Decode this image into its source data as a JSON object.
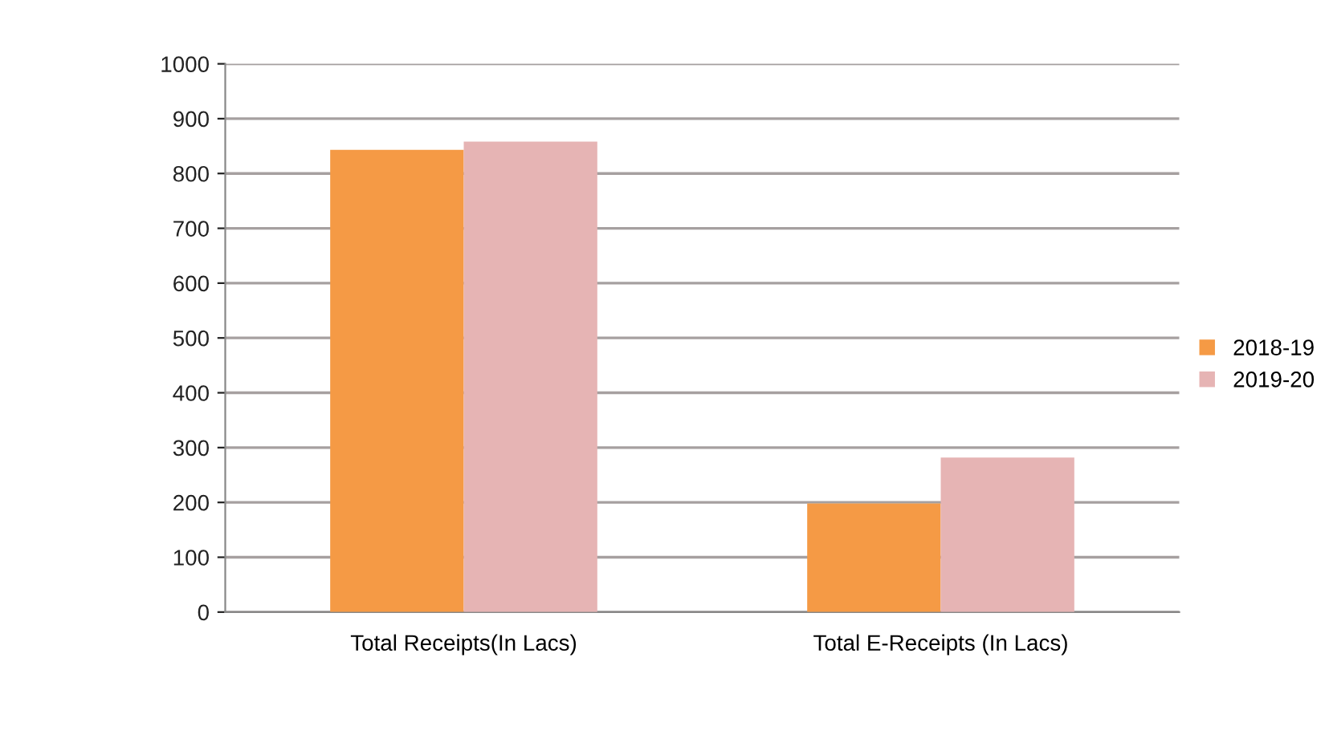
{
  "chart_data": {
    "type": "bar",
    "categories": [
      "Total Receipts(In Lacs)",
      "Total E-Receipts (In Lacs)"
    ],
    "series": [
      {
        "name": "2018-19",
        "color": "#f59a45",
        "values": [
          843,
          198
        ]
      },
      {
        "name": "2019-20",
        "color": "#e6b4b4",
        "values": [
          858,
          282
        ]
      }
    ],
    "ylim": [
      0,
      1000
    ],
    "yticks": [
      0,
      100,
      200,
      300,
      400,
      500,
      600,
      700,
      800,
      900,
      1000
    ],
    "grid": "y",
    "legend": "right"
  }
}
